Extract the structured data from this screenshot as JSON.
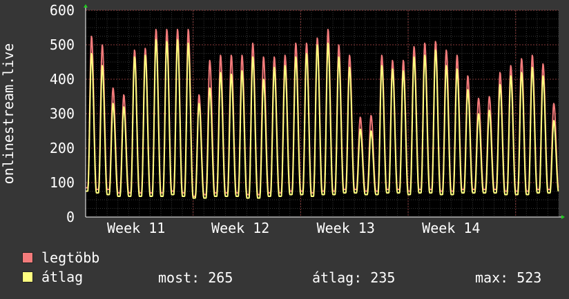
{
  "chart_data": {
    "type": "line",
    "ylabel": "onlinestream.live",
    "ylim": [
      0,
      600
    ],
    "y_ticks": [
      "0",
      "100",
      "200",
      "300",
      "400",
      "500",
      "600"
    ],
    "x_ticks": [
      "Week 11",
      "Week 12",
      "Week 13",
      "Week 14"
    ],
    "grid": true,
    "days": 44,
    "series": [
      {
        "name": "legtöbb",
        "color": "#f37b7b",
        "peaks": [
          525,
          500,
          375,
          355,
          485,
          490,
          545,
          545,
          545,
          545,
          355,
          455,
          470,
          470,
          470,
          505,
          465,
          465,
          470,
          505,
          505,
          520,
          545,
          500,
          470,
          290,
          295,
          470,
          455,
          455,
          495,
          505,
          510,
          485,
          470,
          410,
          345,
          350,
          420,
          440,
          460,
          470,
          445,
          330
        ],
        "troughs": [
          85,
          80,
          80,
          70,
          70,
          70,
          70,
          70,
          75,
          70,
          60,
          65,
          70,
          70,
          70,
          65,
          65,
          70,
          70,
          75,
          75,
          70,
          75,
          75,
          80,
          80,
          75,
          75,
          80,
          80,
          75,
          80,
          80,
          75,
          75,
          80,
          80,
          80,
          80,
          75,
          75,
          75,
          80,
          80
        ]
      },
      {
        "name": "átlag",
        "color": "#ffff80",
        "peaks": [
          475,
          440,
          330,
          320,
          465,
          470,
          515,
          510,
          515,
          505,
          330,
          375,
          420,
          415,
          425,
          465,
          400,
          435,
          440,
          465,
          475,
          500,
          505,
          465,
          435,
          255,
          250,
          440,
          430,
          425,
          465,
          470,
          485,
          440,
          430,
          370,
          300,
          310,
          385,
          410,
          420,
          435,
          410,
          280
        ],
        "troughs": [
          75,
          70,
          65,
          60,
          60,
          60,
          60,
          60,
          65,
          60,
          55,
          55,
          60,
          60,
          60,
          55,
          55,
          60,
          60,
          65,
          65,
          60,
          65,
          65,
          70,
          70,
          65,
          65,
          70,
          70,
          65,
          70,
          70,
          65,
          65,
          70,
          70,
          70,
          70,
          65,
          65,
          65,
          70,
          70
        ]
      }
    ]
  },
  "legend": {
    "max_label": "legtöbb",
    "avg_label": "átlag",
    "max_color": "#f37b7b",
    "avg_color": "#ffff80"
  },
  "stats": {
    "now": "most: 265",
    "avg": "átlag: 235",
    "max": "max: 523"
  }
}
